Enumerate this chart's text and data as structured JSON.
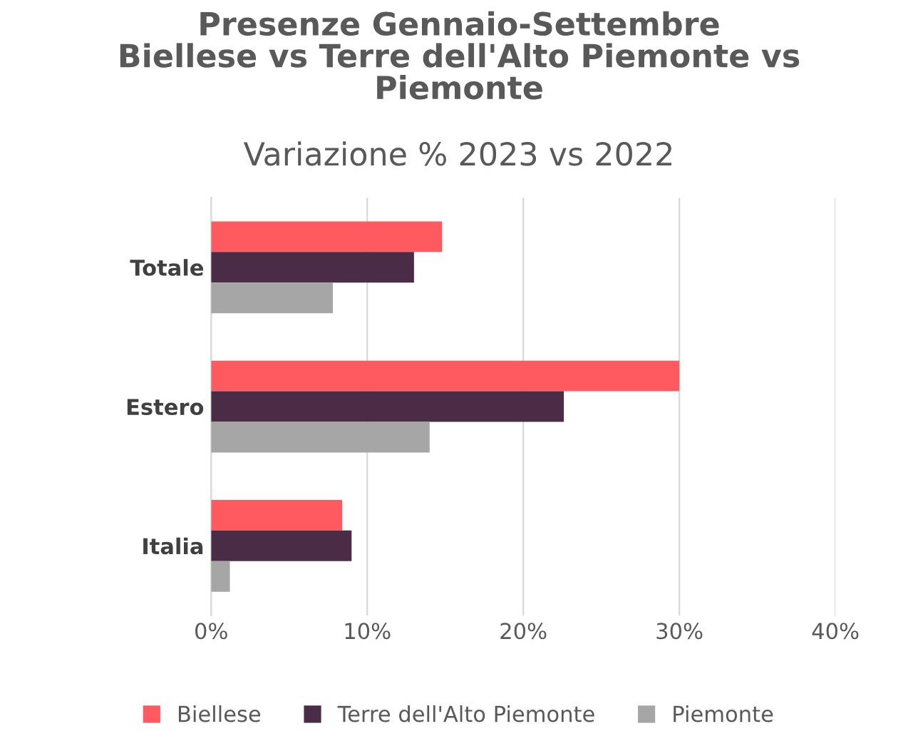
{
  "chart_data": {
    "type": "bar",
    "orientation": "horizontal",
    "title": "Presenze Gennaio-Settembre\nBiellese vs Terre dell'Alto Piemonte vs\nPiemonte",
    "subtitle": "Variazione % 2023 vs 2022",
    "categories": [
      "Totale",
      "Estero",
      "Italia"
    ],
    "series": [
      {
        "name": "Biellese",
        "color": "#ff5a5f",
        "values": [
          14.8,
          30.0,
          8.4
        ]
      },
      {
        "name": "Terre dell'Alto Piemonte",
        "color": "#4b2c46",
        "values": [
          13.0,
          22.6,
          9.0
        ]
      },
      {
        "name": "Piemonte",
        "color": "#a6a6a6",
        "values": [
          7.8,
          14.0,
          1.2
        ]
      }
    ],
    "xlim": [
      0,
      40
    ],
    "xticks": [
      {
        "value": 0,
        "label": "0%"
      },
      {
        "value": 10,
        "label": "10%"
      },
      {
        "value": 20,
        "label": "20%"
      },
      {
        "value": 30,
        "label": "30%"
      },
      {
        "value": 40,
        "label": "40%"
      }
    ],
    "grid": "x",
    "legend": "bottom"
  }
}
